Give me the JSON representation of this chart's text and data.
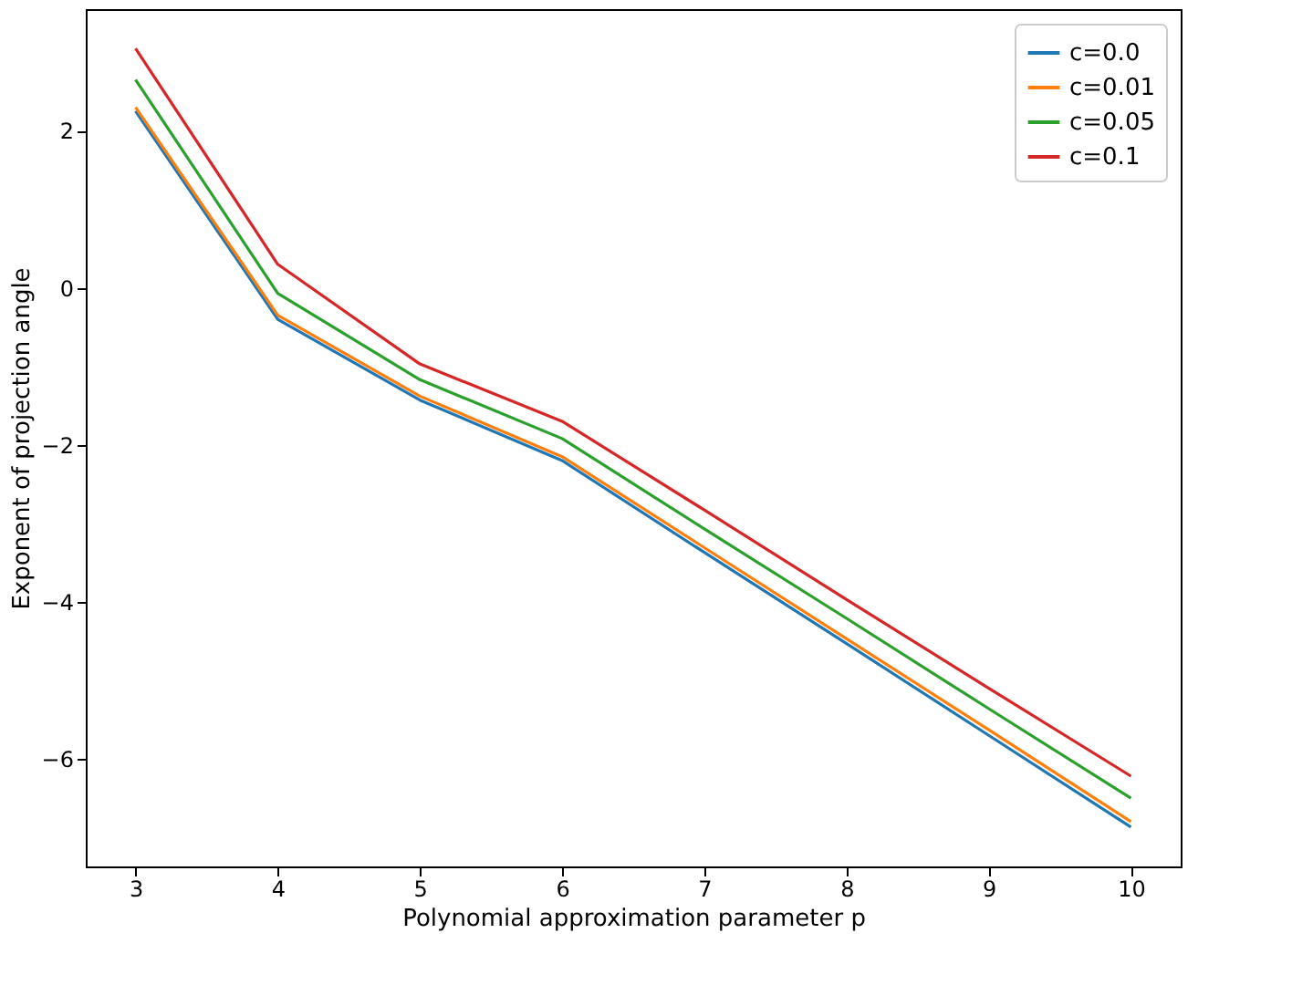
{
  "chart_data": {
    "type": "line",
    "xlabel": "Polynomial approximation parameter p",
    "ylabel": "Exponent of projection angle",
    "x": [
      3,
      4,
      5,
      6,
      7,
      8,
      9,
      10
    ],
    "series": [
      {
        "name": "c=0.0",
        "color": "#1f77b4",
        "values": [
          2.25,
          -0.4,
          -1.43,
          -2.2,
          -3.37,
          -4.53,
          -5.7,
          -6.87
        ]
      },
      {
        "name": "c=0.01",
        "color": "#ff7f0e",
        "values": [
          2.3,
          -0.35,
          -1.38,
          -2.15,
          -3.31,
          -4.47,
          -5.63,
          -6.8
        ]
      },
      {
        "name": "c=0.05",
        "color": "#2ca02c",
        "values": [
          2.65,
          -0.07,
          -1.17,
          -1.92,
          -3.07,
          -4.21,
          -5.36,
          -6.5
        ]
      },
      {
        "name": "c=0.1",
        "color": "#d62728",
        "values": [
          3.05,
          0.3,
          -0.97,
          -1.7,
          -2.83,
          -3.97,
          -5.1,
          -6.22
        ]
      }
    ],
    "xlim": [
      2.65,
      10.35
    ],
    "ylim": [
      -7.37,
      3.55
    ],
    "xticks": [
      3,
      4,
      5,
      6,
      7,
      8,
      9,
      10
    ],
    "yticks": [
      {
        "value": -6,
        "label": "−6"
      },
      {
        "value": -4,
        "label": "−4"
      },
      {
        "value": -2,
        "label": "−2"
      },
      0,
      2
    ],
    "grid": false,
    "legend": "top right",
    "marker": "none",
    "line_style": "solid"
  }
}
